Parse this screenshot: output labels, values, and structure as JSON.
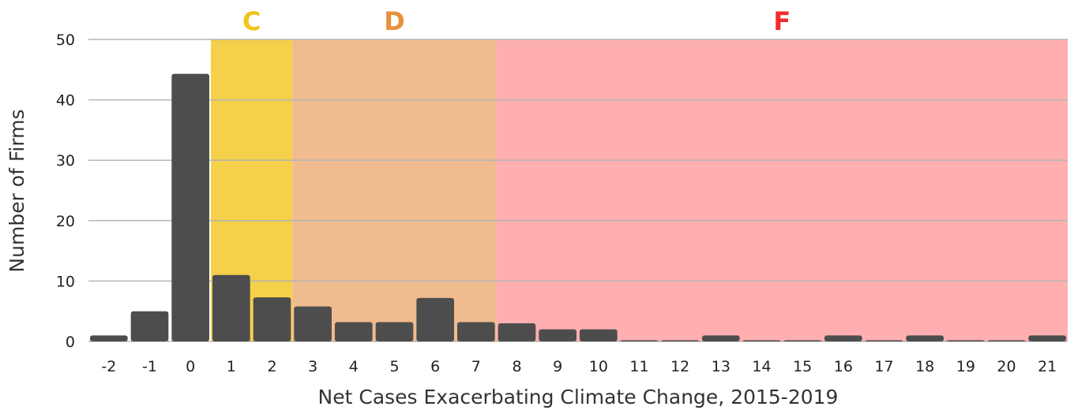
{
  "chart_data": {
    "type": "bar",
    "xlabel": "Net Cases Exacerbating Climate Change, 2015-2019",
    "ylabel": "Number of Firms",
    "ylim": [
      0,
      50
    ],
    "yticks": [
      0,
      10,
      20,
      30,
      40,
      50
    ],
    "grid": true,
    "categories": [
      "-2",
      "-1",
      "0",
      "1",
      "2",
      "3",
      "4",
      "5",
      "6",
      "7",
      "8",
      "9",
      "10",
      "11",
      "12",
      "13",
      "14",
      "15",
      "16",
      "17",
      "18",
      "19",
      "20",
      "21"
    ],
    "values": [
      1,
      5,
      44.3,
      11,
      7.3,
      5.8,
      3.2,
      3.2,
      7.2,
      3.2,
      3,
      2,
      2,
      0.2,
      0.2,
      1,
      0.2,
      0.2,
      1,
      0.2,
      1,
      0.2,
      0.2,
      1
    ],
    "bar_color": "#4d4d4d",
    "bands": [
      {
        "label": "C",
        "from": 0.5,
        "to": 2.5,
        "color": "#f5d04a",
        "label_color": "#f0c419"
      },
      {
        "label": "D",
        "from": 2.5,
        "to": 7.5,
        "color": "#f0bb8f",
        "label_color": "#e8903a"
      },
      {
        "label": "F",
        "from": 7.5,
        "to": 22,
        "color": "#ffafb0",
        "label_color": "#f52a2a"
      }
    ]
  }
}
